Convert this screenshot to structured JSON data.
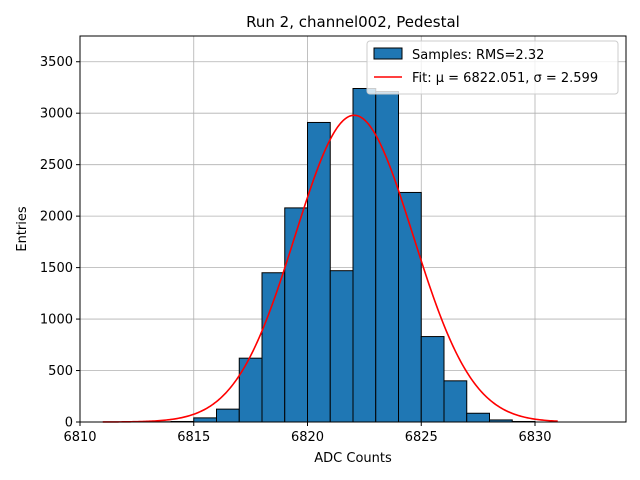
{
  "chart_data": {
    "type": "bar",
    "title": "Run 2, channel002, Pedestal",
    "xlabel": "ADC Counts",
    "ylabel": "Entries",
    "xlim": [
      6810,
      6834
    ],
    "ylim": [
      0,
      3750
    ],
    "xticks": [
      6810,
      6815,
      6820,
      6825,
      6830
    ],
    "yticks": [
      0,
      500,
      1000,
      1500,
      2000,
      2500,
      3000,
      3500
    ],
    "grid": true,
    "legend_position": "top-right",
    "bin_width": 1,
    "series": [
      {
        "name": "Samples: RMS=2.32",
        "kind": "histogram",
        "color": "#1f77b4",
        "edgecolor": "#000000",
        "bin_starts": [
          6813,
          6814,
          6815,
          6816,
          6817,
          6818,
          6819,
          6820,
          6821,
          6822,
          6823,
          6824,
          6825,
          6826,
          6827,
          6828,
          6829
        ],
        "values": [
          2,
          5,
          40,
          125,
          620,
          1450,
          2080,
          2910,
          1470,
          3240,
          3210,
          2230,
          830,
          400,
          85,
          20,
          5
        ]
      },
      {
        "name": "Fit: μ = 6822.051, σ = 2.599",
        "kind": "gaussian",
        "color": "#ff0000",
        "mu": 6822.051,
        "sigma": 2.599,
        "amplitude": 2980,
        "x_range": [
          6811,
          6831
        ]
      }
    ]
  }
}
